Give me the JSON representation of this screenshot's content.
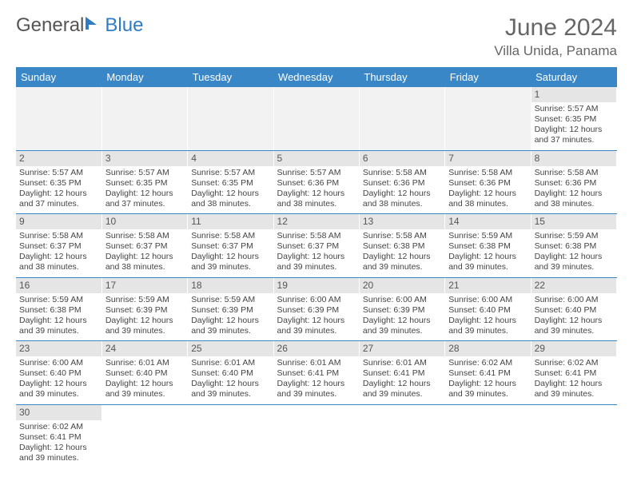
{
  "brand": {
    "part1": "General",
    "part2": "Blue"
  },
  "title": "June 2024",
  "location": "Villa Unida, Panama",
  "colors": {
    "header_bg": "#3a87c8",
    "header_fg": "#ffffff",
    "daynum_bg": "#e5e5e5",
    "cell_border": "#3a87c8",
    "brand_blue": "#2f7cc4",
    "text": "#444444"
  },
  "weekdays": [
    "Sunday",
    "Monday",
    "Tuesday",
    "Wednesday",
    "Thursday",
    "Friday",
    "Saturday"
  ],
  "first_weekday_index": 6,
  "days": [
    {
      "n": 1,
      "sunrise": "5:57 AM",
      "sunset": "6:35 PM",
      "dh": 12,
      "dm": 37
    },
    {
      "n": 2,
      "sunrise": "5:57 AM",
      "sunset": "6:35 PM",
      "dh": 12,
      "dm": 37
    },
    {
      "n": 3,
      "sunrise": "5:57 AM",
      "sunset": "6:35 PM",
      "dh": 12,
      "dm": 37
    },
    {
      "n": 4,
      "sunrise": "5:57 AM",
      "sunset": "6:35 PM",
      "dh": 12,
      "dm": 38
    },
    {
      "n": 5,
      "sunrise": "5:57 AM",
      "sunset": "6:36 PM",
      "dh": 12,
      "dm": 38
    },
    {
      "n": 6,
      "sunrise": "5:58 AM",
      "sunset": "6:36 PM",
      "dh": 12,
      "dm": 38
    },
    {
      "n": 7,
      "sunrise": "5:58 AM",
      "sunset": "6:36 PM",
      "dh": 12,
      "dm": 38
    },
    {
      "n": 8,
      "sunrise": "5:58 AM",
      "sunset": "6:36 PM",
      "dh": 12,
      "dm": 38
    },
    {
      "n": 9,
      "sunrise": "5:58 AM",
      "sunset": "6:37 PM",
      "dh": 12,
      "dm": 38
    },
    {
      "n": 10,
      "sunrise": "5:58 AM",
      "sunset": "6:37 PM",
      "dh": 12,
      "dm": 38
    },
    {
      "n": 11,
      "sunrise": "5:58 AM",
      "sunset": "6:37 PM",
      "dh": 12,
      "dm": 39
    },
    {
      "n": 12,
      "sunrise": "5:58 AM",
      "sunset": "6:37 PM",
      "dh": 12,
      "dm": 39
    },
    {
      "n": 13,
      "sunrise": "5:58 AM",
      "sunset": "6:38 PM",
      "dh": 12,
      "dm": 39
    },
    {
      "n": 14,
      "sunrise": "5:59 AM",
      "sunset": "6:38 PM",
      "dh": 12,
      "dm": 39
    },
    {
      "n": 15,
      "sunrise": "5:59 AM",
      "sunset": "6:38 PM",
      "dh": 12,
      "dm": 39
    },
    {
      "n": 16,
      "sunrise": "5:59 AM",
      "sunset": "6:38 PM",
      "dh": 12,
      "dm": 39
    },
    {
      "n": 17,
      "sunrise": "5:59 AM",
      "sunset": "6:39 PM",
      "dh": 12,
      "dm": 39
    },
    {
      "n": 18,
      "sunrise": "5:59 AM",
      "sunset": "6:39 PM",
      "dh": 12,
      "dm": 39
    },
    {
      "n": 19,
      "sunrise": "6:00 AM",
      "sunset": "6:39 PM",
      "dh": 12,
      "dm": 39
    },
    {
      "n": 20,
      "sunrise": "6:00 AM",
      "sunset": "6:39 PM",
      "dh": 12,
      "dm": 39
    },
    {
      "n": 21,
      "sunrise": "6:00 AM",
      "sunset": "6:40 PM",
      "dh": 12,
      "dm": 39
    },
    {
      "n": 22,
      "sunrise": "6:00 AM",
      "sunset": "6:40 PM",
      "dh": 12,
      "dm": 39
    },
    {
      "n": 23,
      "sunrise": "6:00 AM",
      "sunset": "6:40 PM",
      "dh": 12,
      "dm": 39
    },
    {
      "n": 24,
      "sunrise": "6:01 AM",
      "sunset": "6:40 PM",
      "dh": 12,
      "dm": 39
    },
    {
      "n": 25,
      "sunrise": "6:01 AM",
      "sunset": "6:40 PM",
      "dh": 12,
      "dm": 39
    },
    {
      "n": 26,
      "sunrise": "6:01 AM",
      "sunset": "6:41 PM",
      "dh": 12,
      "dm": 39
    },
    {
      "n": 27,
      "sunrise": "6:01 AM",
      "sunset": "6:41 PM",
      "dh": 12,
      "dm": 39
    },
    {
      "n": 28,
      "sunrise": "6:02 AM",
      "sunset": "6:41 PM",
      "dh": 12,
      "dm": 39
    },
    {
      "n": 29,
      "sunrise": "6:02 AM",
      "sunset": "6:41 PM",
      "dh": 12,
      "dm": 39
    },
    {
      "n": 30,
      "sunrise": "6:02 AM",
      "sunset": "6:41 PM",
      "dh": 12,
      "dm": 39
    }
  ],
  "labels": {
    "sunrise": "Sunrise:",
    "sunset": "Sunset:",
    "daylight_prefix": "Daylight:",
    "hours_word": "hours",
    "and_word": "and",
    "minutes_word": "minutes."
  }
}
